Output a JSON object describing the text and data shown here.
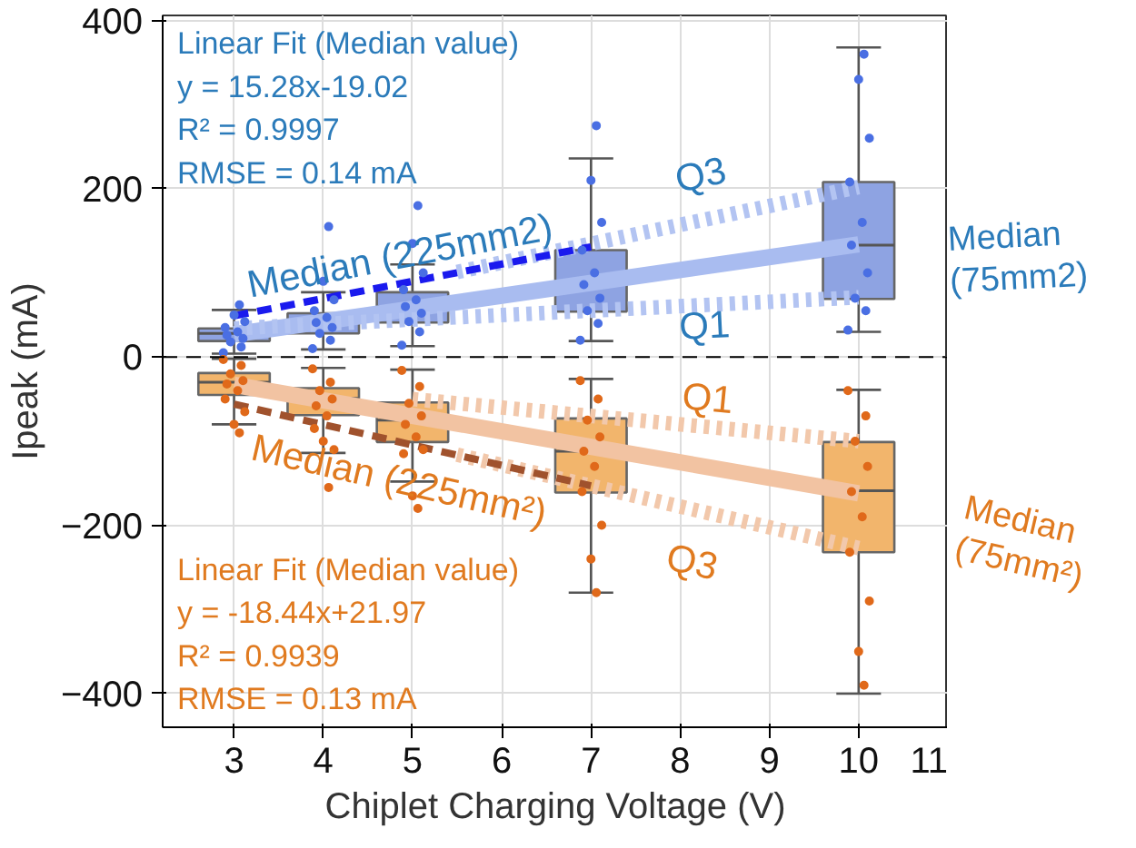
{
  "chart_data": {
    "type": "box",
    "xlabel": "Chiplet Charging Voltage (V)",
    "ylabel": "Ipeak (mA)",
    "xlim": [
      2.2,
      11
    ],
    "xticks": [
      3,
      4,
      5,
      6,
      7,
      8,
      9,
      10,
      11
    ],
    "ylim": [
      -440,
      406
    ],
    "yticks": [
      -400,
      -200,
      0,
      200,
      400
    ],
    "grid": true,
    "ref_lines": [
      {
        "axis": "y",
        "value": 0,
        "color": "#000000",
        "line_style": "dashed"
      }
    ],
    "series": [
      {
        "color": "#8ea3e2",
        "x": [
          3,
          4,
          5,
          7,
          10
        ],
        "boxes": [
          {
            "low": 4,
            "q1": 19,
            "median": 28,
            "q3": 34,
            "high": 56
          },
          {
            "low": 9,
            "q1": 28,
            "median": 41,
            "q3": 52,
            "high": 77
          },
          {
            "low": 13,
            "q1": 41,
            "median": 60,
            "q3": 77,
            "high": 110
          },
          {
            "low": 19,
            "q1": 54,
            "median": 86,
            "q3": 127,
            "high": 236
          },
          {
            "low": 30,
            "q1": 69,
            "median": 133,
            "q3": 208,
            "high": 368
          }
        ]
      },
      {
        "color": "#f2b56c",
        "x": [
          3,
          4,
          5,
          7,
          10
        ],
        "boxes": [
          {
            "low": -80,
            "q1": -45,
            "median": -30,
            "q3": -19,
            "high": -2
          },
          {
            "low": -114,
            "q1": -69,
            "median": -49,
            "q3": -37,
            "high": -13
          },
          {
            "low": -148,
            "q1": -101,
            "median": -75,
            "q3": -54,
            "high": -15
          },
          {
            "low": -280,
            "q1": -161,
            "median": -112,
            "q3": -73,
            "high": -26
          },
          {
            "low": -400,
            "q1": -232,
            "median": -159,
            "q3": -101,
            "high": -39
          }
        ]
      },
      {
        "type": "scatter",
        "color": "#4a6fe3",
        "marker": "circle",
        "x": [
          2.88,
          3.08,
          2.96,
          3.1,
          2.92,
          3.04,
          2.9,
          3.12,
          3.0,
          3.06,
          3.88,
          4.08,
          3.96,
          4.1,
          3.92,
          4.04,
          3.9,
          4.12,
          4.0,
          4.06,
          4.88,
          5.08,
          4.96,
          5.1,
          4.92,
          5.04,
          4.9,
          5.12,
          5.0,
          5.06,
          6.88,
          7.08,
          6.96,
          7.1,
          6.92,
          7.04,
          6.9,
          7.12,
          7.0,
          7.06,
          9.88,
          10.08,
          9.96,
          10.1,
          9.92,
          10.04,
          9.9,
          10.12,
          10.0,
          10.06
        ],
        "values": [
          5,
          12,
          18,
          22,
          26,
          30,
          35,
          42,
          50,
          62,
          10,
          20,
          28,
          35,
          41,
          47,
          55,
          68,
          90,
          155,
          14,
          30,
          42,
          52,
          60,
          68,
          80,
          100,
          135,
          180,
          20,
          40,
          55,
          70,
          86,
          100,
          127,
          160,
          210,
          275,
          32,
          55,
          70,
          100,
          133,
          160,
          208,
          260,
          330,
          360
        ]
      },
      {
        "type": "scatter",
        "color": "#e0691a",
        "marker": "circle",
        "x": [
          2.88,
          3.08,
          2.96,
          3.1,
          2.92,
          3.04,
          2.9,
          3.12,
          3.0,
          3.06,
          3.88,
          4.08,
          3.96,
          4.1,
          3.92,
          4.04,
          3.9,
          4.12,
          4.0,
          4.06,
          4.88,
          5.08,
          4.96,
          5.1,
          4.92,
          5.04,
          4.9,
          5.12,
          5.0,
          5.06,
          6.88,
          7.08,
          6.96,
          7.1,
          6.92,
          7.04,
          6.9,
          7.12,
          7.0,
          7.06,
          9.88,
          10.08,
          9.96,
          10.1,
          9.92,
          10.04,
          9.9,
          10.12,
          10.0,
          10.06
        ],
        "values": [
          -3,
          -10,
          -20,
          -28,
          -32,
          -40,
          -50,
          -65,
          -80,
          -90,
          -14,
          -30,
          -40,
          -50,
          -58,
          -70,
          -85,
          -110,
          -100,
          -155,
          -16,
          -35,
          -55,
          -70,
          -80,
          -95,
          -115,
          -110,
          -165,
          -180,
          -28,
          -50,
          -75,
          -95,
          -112,
          -130,
          -160,
          -200,
          -240,
          -280,
          -40,
          -70,
          -100,
          -130,
          -160,
          -190,
          -232,
          -290,
          -350,
          -390
        ]
      },
      {
        "type": "line",
        "color": "#a9bcf0",
        "line_style": "solid",
        "x": [
          3,
          10
        ],
        "values": [
          27,
          134
        ]
      },
      {
        "type": "line",
        "color": "#b3c4f2",
        "line_style": "dotted",
        "x": [
          3,
          10
        ],
        "values": [
          34,
          71
        ]
      },
      {
        "type": "line",
        "color": "#b3c4f2",
        "line_style": "dotted",
        "x": [
          5.5,
          10
        ],
        "values": [
          101,
          202
        ]
      },
      {
        "type": "line",
        "color": "#1a1aee",
        "line_style": "dashed",
        "x": [
          3,
          7
        ],
        "values": [
          49,
          131
        ]
      },
      {
        "type": "line",
        "color": "#f2c3a2",
        "line_style": "solid",
        "x": [
          3,
          10
        ],
        "values": [
          -33,
          -162
        ]
      },
      {
        "type": "line",
        "color": "#f2c8ab",
        "line_style": "dotted",
        "x": [
          5,
          10
        ],
        "values": [
          -50,
          -100
        ]
      },
      {
        "type": "line",
        "color": "#f2c8ab",
        "line_style": "dotted",
        "x": [
          5.5,
          10
        ],
        "values": [
          -116,
          -227
        ]
      },
      {
        "type": "line",
        "color": "#a0522d",
        "line_style": "dashed",
        "x": [
          3,
          7
        ],
        "values": [
          -56,
          -153
        ]
      }
    ],
    "annotations": [
      "Linear Fit (Median value)\ny = 15.28x-19.02\nR² = 0.9997\nRMSE = 0.14 mA",
      "Linear Fit (Median value)\ny = -18.44x+21.97\nR² = 0.9939\nRMSE = 0.13 mA",
      "Median (225mm2)",
      "Q3",
      "Q1",
      "Median\n(75mm2)",
      "Q1",
      "Median (225mm²)",
      "Q3",
      "Median\n(75mm²)"
    ]
  }
}
